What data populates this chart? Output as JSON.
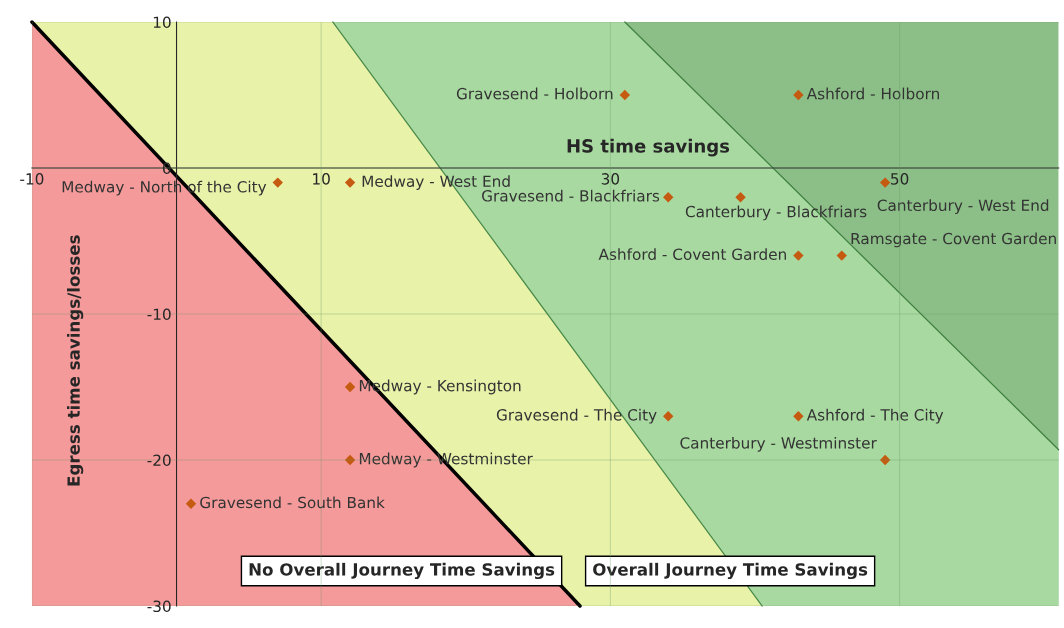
{
  "chart_data": {
    "type": "scatter",
    "xlabel": "HS time savings",
    "ylabel": "Egress time savings/losses",
    "xlim": [
      -10,
      61
    ],
    "ylim": [
      -30,
      10
    ],
    "xticks": [
      -10,
      10,
      30,
      50
    ],
    "yticks": [
      -30,
      -20,
      -10,
      0,
      10
    ],
    "grid": true,
    "series": [
      {
        "type": "line",
        "color": "#3f7f3f",
        "x": [
          31,
          61
        ],
        "values": [
          10,
          -19.3
        ]
      },
      {
        "type": "line",
        "color": "#4a8a4a",
        "x": [
          10.8,
          40.5
        ],
        "values": [
          10,
          -30
        ]
      },
      {
        "type": "line",
        "color": "#000000",
        "x": [
          -10,
          27.9
        ],
        "values": [
          10,
          -30
        ]
      },
      {
        "marker": "diamond",
        "color": "#c55a11",
        "x": [
          31,
          43,
          7,
          12,
          49,
          34,
          39,
          43,
          46,
          12,
          34,
          43,
          12,
          49,
          1
        ],
        "values": [
          5,
          5,
          -1,
          -1,
          -1,
          -2,
          -2,
          -6,
          -6,
          -15,
          -17,
          -17,
          -20,
          -20,
          -23
        ]
      }
    ],
    "annotations": [
      {
        "text": "Gravesend - Holborn",
        "x": 31,
        "y": 5
      },
      {
        "text": "Ashford - Holborn",
        "x": 43,
        "y": 5
      },
      {
        "text": "Medway - North of the City",
        "x": 7,
        "y": -1
      },
      {
        "text": "Medway - West End",
        "x": 12,
        "y": -1
      },
      {
        "text": "Canterbury - West End",
        "x": 49,
        "y": -1
      },
      {
        "text": "Gravesend - Blackfriars",
        "x": 34,
        "y": -2
      },
      {
        "text": "Canterbury - Blackfriars",
        "x": 39,
        "y": -2
      },
      {
        "text": "Ashford - Covent Garden",
        "x": 43,
        "y": -6
      },
      {
        "text": "Ramsgate - Covent Garden",
        "x": 46,
        "y": -6
      },
      {
        "text": "Medway - Kensington",
        "x": 12,
        "y": -15
      },
      {
        "text": "Gravesend - The City",
        "x": 34,
        "y": -17
      },
      {
        "text": "Ashford - The City",
        "x": 43,
        "y": -17
      },
      {
        "text": "Medway - Westminster",
        "x": 12,
        "y": -20
      },
      {
        "text": "Canterbury - Westminster",
        "x": 49,
        "y": -20
      },
      {
        "text": "Gravesend - South Bank",
        "x": 1,
        "y": -23
      },
      "No Overall Journey Time Savings",
      "Overall Journey Time Savings"
    ]
  }
}
